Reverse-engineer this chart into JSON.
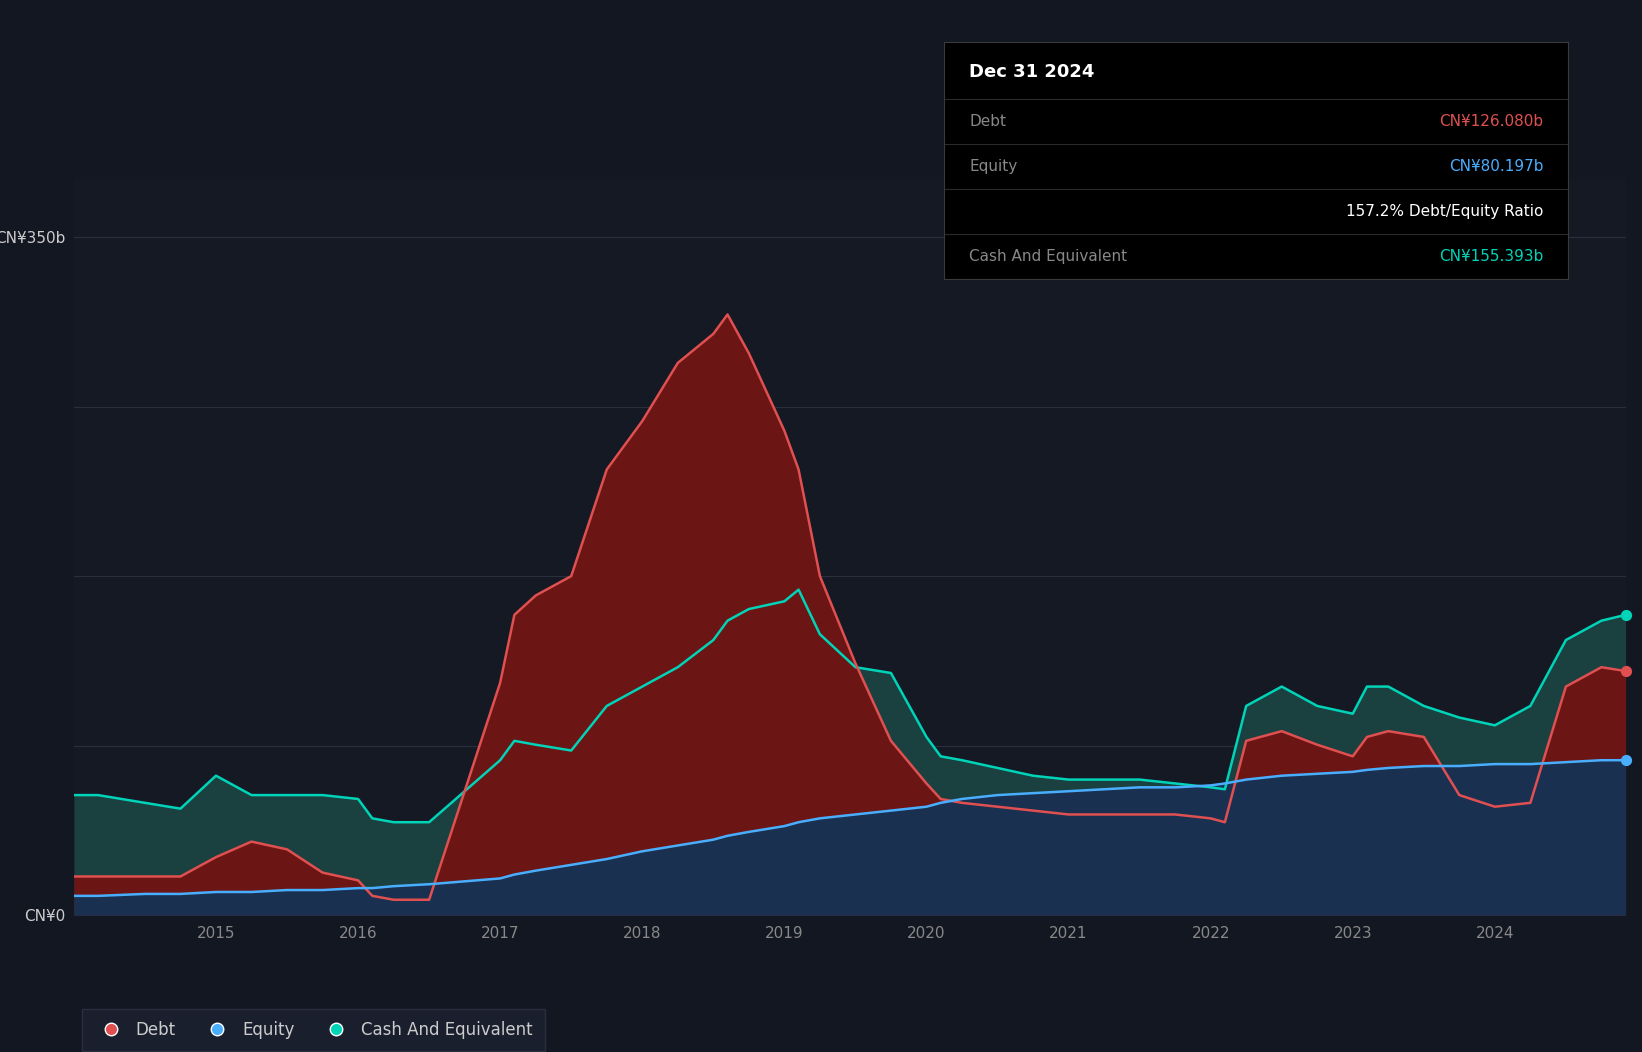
{
  "background_color": "#131722",
  "plot_bg_color": "#141924",
  "grid_color": "#2a2f3e",
  "tooltip": {
    "date": "Dec 31 2024",
    "debt_label": "Debt",
    "debt_value": "CN¥126.080b",
    "equity_label": "Equity",
    "equity_value": "CN¥80.197b",
    "ratio": "157.2% Debt/Equity Ratio",
    "cash_label": "Cash And Equivalent",
    "cash_value": "CN¥155.393b"
  },
  "y_label_top": "CN¥350b",
  "y_label_zero": "CN¥0",
  "ylim": [
    0,
    380
  ],
  "debt_color": "#e05050",
  "equity_color": "#4aaeff",
  "cash_color": "#00d4b8",
  "debt_fill_color": "#6b1515",
  "cash_fill_color": "#1a4040",
  "equity_fill_color": "#1a3050",
  "dates": [
    2014.0,
    2014.17,
    2014.5,
    2014.75,
    2015.0,
    2015.25,
    2015.5,
    2015.75,
    2016.0,
    2016.1,
    2016.25,
    2016.5,
    2017.0,
    2017.1,
    2017.25,
    2017.5,
    2017.75,
    2018.0,
    2018.25,
    2018.5,
    2018.6,
    2018.75,
    2019.0,
    2019.1,
    2019.25,
    2019.5,
    2019.75,
    2020.0,
    2020.1,
    2020.25,
    2020.5,
    2020.75,
    2021.0,
    2021.25,
    2021.5,
    2021.75,
    2022.0,
    2022.1,
    2022.25,
    2022.5,
    2022.75,
    2023.0,
    2023.1,
    2023.25,
    2023.5,
    2023.75,
    2024.0,
    2024.25,
    2024.5,
    2024.75,
    2024.92
  ],
  "debt": [
    20,
    20,
    20,
    20,
    30,
    38,
    34,
    22,
    18,
    10,
    8,
    8,
    120,
    155,
    165,
    175,
    230,
    255,
    285,
    300,
    310,
    290,
    250,
    230,
    175,
    130,
    90,
    68,
    60,
    58,
    56,
    54,
    52,
    52,
    52,
    52,
    50,
    48,
    90,
    95,
    88,
    82,
    92,
    95,
    92,
    62,
    56,
    58,
    118,
    128,
    126
  ],
  "cash": [
    62,
    62,
    58,
    55,
    72,
    62,
    62,
    62,
    60,
    50,
    48,
    48,
    80,
    90,
    88,
    85,
    108,
    118,
    128,
    142,
    152,
    158,
    162,
    168,
    145,
    128,
    125,
    92,
    82,
    80,
    76,
    72,
    70,
    70,
    70,
    68,
    66,
    65,
    108,
    118,
    108,
    104,
    118,
    118,
    108,
    102,
    98,
    108,
    142,
    152,
    155
  ],
  "equity": [
    10,
    10,
    11,
    11,
    12,
    12,
    13,
    13,
    14,
    14,
    15,
    16,
    19,
    21,
    23,
    26,
    29,
    33,
    36,
    39,
    41,
    43,
    46,
    48,
    50,
    52,
    54,
    56,
    58,
    60,
    62,
    63,
    64,
    65,
    66,
    66,
    67,
    68,
    70,
    72,
    73,
    74,
    75,
    76,
    77,
    77,
    78,
    78,
    79,
    80,
    80
  ],
  "xtick_years": [
    2015,
    2016,
    2017,
    2018,
    2019,
    2020,
    2021,
    2022,
    2023,
    2024
  ],
  "legend_items": [
    {
      "label": "Debt",
      "color": "#e05050"
    },
    {
      "label": "Equity",
      "color": "#4aaeff"
    },
    {
      "label": "Cash And Equivalent",
      "color": "#00d4b8"
    }
  ]
}
